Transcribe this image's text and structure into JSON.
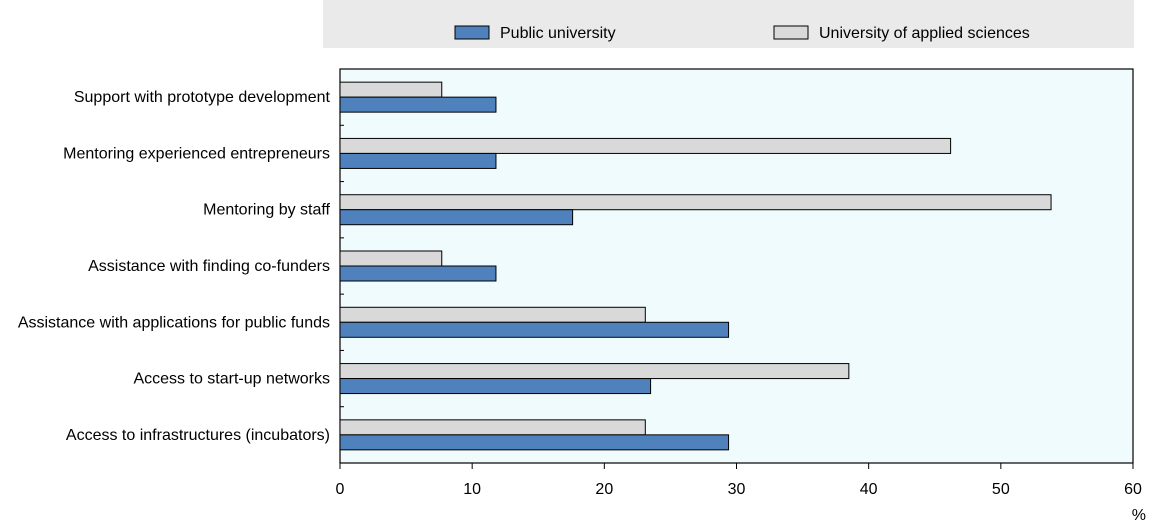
{
  "chart_data": {
    "type": "bar",
    "orientation": "horizontal",
    "categories": [
      "Support with prototype development",
      "Mentoring experienced entrepreneurs",
      "Mentoring by staff",
      "Assistance with finding co-funders",
      "Assistance with applications for public funds",
      "Access to start-up networks",
      "Access to infrastructures (incubators)"
    ],
    "series": [
      {
        "name": "University of applied sciences",
        "values": [
          7.7,
          46.2,
          53.8,
          7.7,
          23.1,
          38.5,
          23.1
        ],
        "color": "#d9d9d9"
      },
      {
        "name": "Public university",
        "values": [
          11.8,
          11.8,
          17.6,
          11.8,
          29.4,
          23.5,
          29.4
        ],
        "color": "#4f81bd"
      }
    ],
    "legend_order": [
      1,
      0
    ],
    "xlim": [
      0,
      60
    ],
    "xticks": [
      0,
      10,
      20,
      30,
      40,
      50,
      60
    ],
    "xunit": "%",
    "legend_position": "top",
    "grid": false,
    "plot_background": "#f0fbfd",
    "legend_background": "#eaeaea"
  }
}
